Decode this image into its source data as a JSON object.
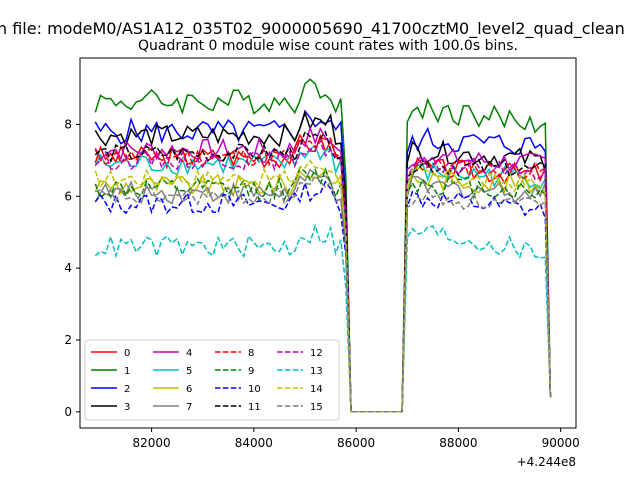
{
  "figure": {
    "suptitle": "n file: modeM0/AS1A12_035T02_9000005690_41700cztM0_level2_quad_clean"
  },
  "chart_data": {
    "type": "line",
    "title": "Quadrant 0 module wise count rates with 100.0s bins.",
    "xlabel": "",
    "ylabel": "",
    "x_offset_label": "+4.244e8",
    "xlim": [
      80600,
      90300
    ],
    "ylim": [
      -0.45,
      9.85
    ],
    "x_ticks": [
      82000,
      84000,
      86000,
      88000,
      90000
    ],
    "y_ticks": [
      0,
      2,
      4,
      6,
      8
    ],
    "grid": false,
    "legend_position": "lower-left",
    "legend_columns": 4,
    "x_range": {
      "start": 80900,
      "end": 89800,
      "step": 100
    },
    "gap": {
      "start": 85900,
      "end": 86900
    },
    "series": [
      {
        "name": "0",
        "color": "#ff0000",
        "dash": "solid",
        "level1": 7.1,
        "level2": 6.8,
        "end": 6.6,
        "amp": 0.3
      },
      {
        "name": "1",
        "color": "#008000",
        "dash": "solid",
        "level1": 8.65,
        "level2": 8.5,
        "end": 8.0,
        "amp": 0.35
      },
      {
        "name": "2",
        "color": "#0000ff",
        "dash": "solid",
        "level1": 7.8,
        "level2": 7.6,
        "end": 7.4,
        "amp": 0.35
      },
      {
        "name": "3",
        "color": "#000000",
        "dash": "solid",
        "level1": 7.7,
        "level2": 7.3,
        "end": 7.0,
        "amp": 0.3
      },
      {
        "name": "4",
        "color": "#bf00bf",
        "dash": "solid",
        "level1": 7.3,
        "level2": 7.1,
        "end": 6.9,
        "amp": 0.3
      },
      {
        "name": "5",
        "color": "#00bfbf",
        "dash": "solid",
        "level1": 6.9,
        "level2": 6.7,
        "end": 6.5,
        "amp": 0.3
      },
      {
        "name": "6",
        "color": "#bfbf00",
        "dash": "solid",
        "level1": 6.3,
        "level2": 6.5,
        "end": 6.3,
        "amp": 0.3
      },
      {
        "name": "7",
        "color": "#808080",
        "dash": "solid",
        "level1": 6.1,
        "level2": 6.3,
        "end": 6.1,
        "amp": 0.3
      },
      {
        "name": "8",
        "color": "#ff0000",
        "dash": "dashed",
        "level1": 7.1,
        "level2": 6.9,
        "end": 6.7,
        "amp": 0.25
      },
      {
        "name": "9",
        "color": "#008000",
        "dash": "dashed",
        "level1": 6.2,
        "level2": 6.4,
        "end": 6.1,
        "amp": 0.3
      },
      {
        "name": "10",
        "color": "#0000ff",
        "dash": "dashed",
        "level1": 5.8,
        "level2": 6.0,
        "end": 5.6,
        "amp": 0.3
      },
      {
        "name": "11",
        "color": "#000000",
        "dash": "dashed",
        "level1": 7.2,
        "level2": 6.9,
        "end": 6.7,
        "amp": 0.25
      },
      {
        "name": "12",
        "color": "#bf00bf",
        "dash": "dashed",
        "level1": 7.0,
        "level2": 6.9,
        "end": 6.7,
        "amp": 0.25
      },
      {
        "name": "13",
        "color": "#00bfbf",
        "dash": "dashed",
        "level1": 4.6,
        "level2": 5.1,
        "end": 4.4,
        "amp": 0.3
      },
      {
        "name": "14",
        "color": "#bfbf00",
        "dash": "dashed",
        "level1": 6.5,
        "level2": 6.6,
        "end": 6.3,
        "amp": 0.25
      },
      {
        "name": "15",
        "color": "#808080",
        "dash": "dashed",
        "level1": 6.0,
        "level2": 6.0,
        "end": 5.7,
        "amp": 0.25
      }
    ]
  }
}
